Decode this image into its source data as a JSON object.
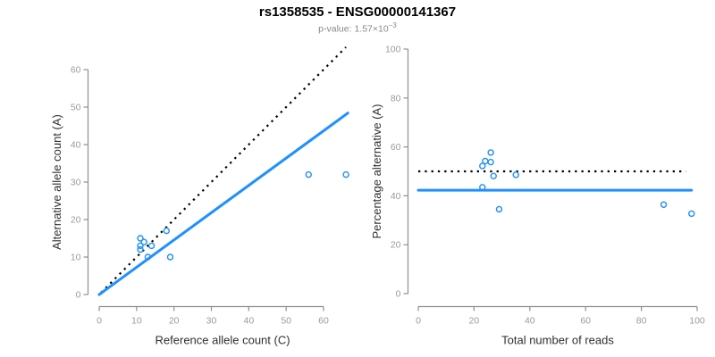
{
  "header": {
    "title": "rs1358535 - ENSG00000141367",
    "subtitle_prefix": "p-value: 1.57×10",
    "subtitle_exponent": "−3"
  },
  "colors": {
    "accent_blue": "#1E90FF",
    "line_black": "#000000",
    "axis_gray": "#8f8f8f",
    "tick_label_gray": "#9a9a9a",
    "axis_title_color": "#303030"
  },
  "chart_data": [
    {
      "type": "scatter",
      "name": "allele-count-scatter",
      "xlabel": "Reference allele count (C)",
      "ylabel": "Alternative allele count (A)",
      "xlim": [
        0,
        66
      ],
      "ylim": [
        0,
        66
      ],
      "xticks": [
        0,
        10,
        20,
        30,
        40,
        50,
        60
      ],
      "yticks": [
        0,
        10,
        20,
        30,
        40,
        50,
        60
      ],
      "grid": false,
      "points": [
        [
          11,
          12
        ],
        [
          11,
          13
        ],
        [
          11,
          15
        ],
        [
          12,
          14
        ],
        [
          13,
          10
        ],
        [
          14,
          13
        ],
        [
          18,
          17
        ],
        [
          19,
          10
        ],
        [
          56,
          32
        ],
        [
          66,
          32
        ]
      ],
      "lines": [
        {
          "name": "identity-line",
          "x1": 0.5,
          "y1": 0.5,
          "x2": 66,
          "y2": 66,
          "style": "dotted",
          "color": "#000000"
        },
        {
          "name": "fit-line",
          "x1": 0,
          "y1": 0,
          "x2": 66.5,
          "y2": 48.4,
          "style": "solid",
          "color": "#1E90FF"
        }
      ]
    },
    {
      "type": "scatter",
      "name": "percentage-scatter",
      "xlabel": "Total number of reads",
      "ylabel": "Percentage alternative (A)",
      "xlim": [
        0,
        100
      ],
      "ylim": [
        0,
        100
      ],
      "xticks": [
        0,
        20,
        40,
        60,
        80,
        100
      ],
      "yticks": [
        0,
        20,
        40,
        60,
        80,
        100
      ],
      "grid": false,
      "points": [
        [
          23,
          52.2
        ],
        [
          24,
          54.2
        ],
        [
          26,
          57.7
        ],
        [
          26,
          53.8
        ],
        [
          23,
          43.5
        ],
        [
          27,
          48.1
        ],
        [
          35,
          48.6
        ],
        [
          29,
          34.5
        ],
        [
          88,
          36.4
        ],
        [
          98,
          32.7
        ]
      ],
      "lines": [
        {
          "name": "expected-line",
          "x1": 0,
          "y1": 50,
          "x2": 96,
          "y2": 50,
          "style": "dotted",
          "color": "#000000"
        },
        {
          "name": "mean-line",
          "x1": 0,
          "y1": 42.3,
          "x2": 98,
          "y2": 42.3,
          "style": "solid",
          "color": "#1E90FF"
        }
      ]
    }
  ]
}
